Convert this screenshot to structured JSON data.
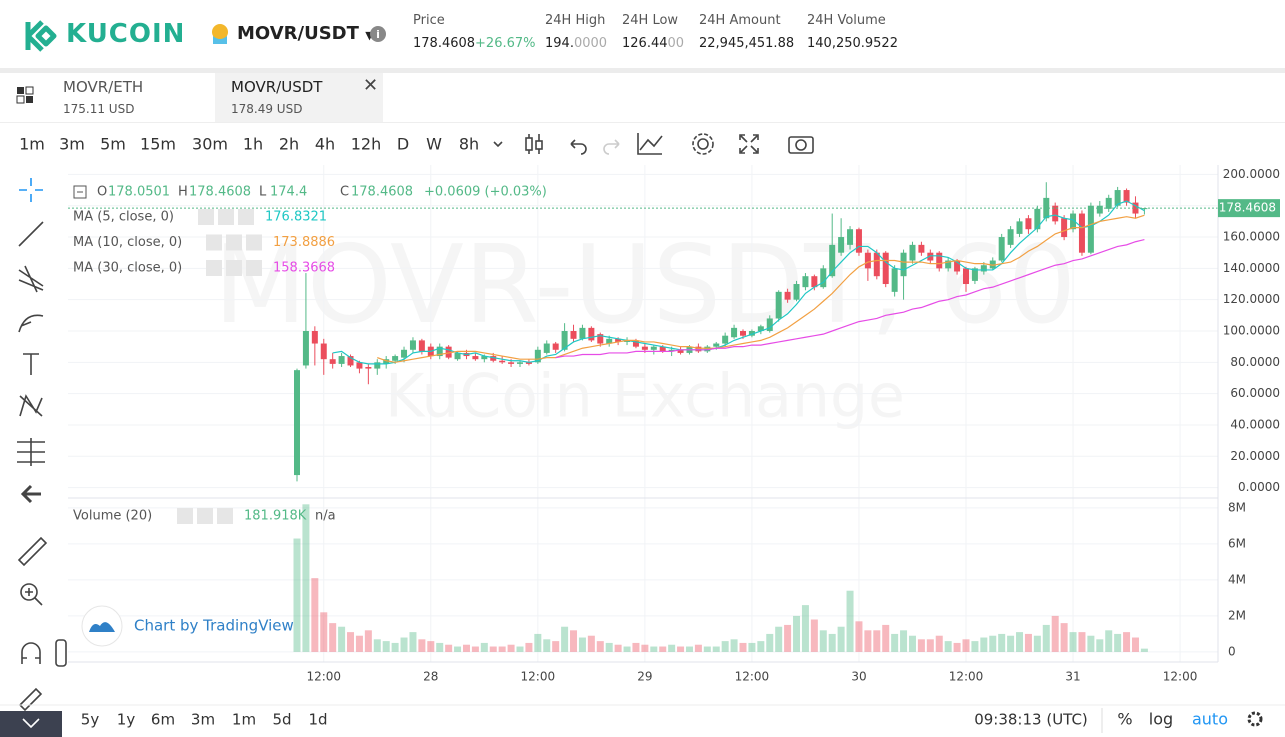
{
  "header": {
    "brand": "KUCOIN",
    "pair": "MOVR/USDT",
    "stats": [
      {
        "label": "Price",
        "value_parts": [
          "178.4608"
        ],
        "change": "+26.67%"
      },
      {
        "label": "24H High",
        "value_parts": [
          "194.",
          "0000"
        ]
      },
      {
        "label": "24H Low",
        "value_parts": [
          "126.44",
          "00"
        ]
      },
      {
        "label": "24H Amount",
        "value_parts": [
          "22,945,451.88"
        ]
      },
      {
        "label": "24H Volume",
        "value_parts": [
          "140,250.9522"
        ]
      }
    ]
  },
  "tabs": [
    {
      "pair": "MOVR/ETH",
      "price": "175.11 USD"
    },
    {
      "pair": "MOVR/USDT",
      "price": "178.49 USD"
    }
  ],
  "active_tab": 1,
  "intervals": [
    "1m",
    "3m",
    "5m",
    "15m",
    "30m",
    "1h",
    "2h",
    "4h",
    "12h",
    "D",
    "W",
    "8h"
  ],
  "active_interval": 5,
  "ranges": [
    "5y",
    "1y",
    "6m",
    "3m",
    "1m",
    "5d",
    "1d"
  ],
  "footer": {
    "time": "09:38:13 (UTC)",
    "options": [
      "%",
      "log",
      "auto"
    ],
    "active_option": 2
  },
  "branding": "Chart by TradingView",
  "chart_data": {
    "type": "candlestick",
    "watermark": "MOVR-USDT, 60",
    "watermark_sub": "KuCoin Exchange",
    "up_color": "#53b987",
    "down_color": "#eb4d5c",
    "grid": true,
    "last_price_line": true,
    "categories": [
      null,
      null,
      null,
      "12:00",
      null,
      null,
      null,
      null,
      null,
      null,
      null,
      null,
      null,
      null,
      null,
      "28",
      null,
      null,
      null,
      null,
      null,
      null,
      null,
      null,
      null,
      null,
      null,
      "12:00",
      null,
      null,
      null,
      null,
      null,
      null,
      null,
      null,
      null,
      null,
      null,
      "29",
      null,
      null,
      null,
      null,
      null,
      null,
      null,
      null,
      null,
      null,
      null,
      "12:00",
      null,
      null,
      null,
      null,
      null,
      null,
      null,
      null,
      null,
      null,
      null,
      "30",
      null,
      null,
      null,
      null,
      null,
      null,
      null,
      null,
      null,
      null,
      null,
      "12:00",
      null,
      null,
      null,
      null,
      null,
      null,
      null,
      null,
      null,
      null,
      null,
      "31",
      null,
      null,
      null,
      null,
      null,
      null,
      null,
      null,
      null,
      null,
      null,
      "12:00"
    ],
    "open": [
      8,
      78,
      100,
      92,
      82,
      79,
      84,
      80,
      77,
      76,
      79,
      81,
      83,
      88,
      94,
      90,
      84,
      90,
      82,
      86,
      84,
      82,
      84,
      81,
      80,
      79,
      80,
      80,
      86,
      92,
      88,
      100,
      95,
      102,
      98,
      92,
      95,
      93,
      94,
      90,
      88,
      90,
      87,
      88,
      86,
      90,
      87,
      90,
      92,
      96,
      100,
      97,
      100,
      100,
      108,
      125,
      120,
      128,
      135,
      128,
      135,
      150,
      155,
      165,
      150,
      150,
      150,
      125,
      135,
      145,
      155,
      150,
      150,
      140,
      145,
      140,
      132,
      138,
      140,
      145,
      155,
      162,
      172,
      165,
      172,
      180,
      172,
      165,
      175,
      150,
      175,
      178,
      180,
      190,
      182,
      178.0501,
      null,
      null,
      null,
      null
    ],
    "high": [
      76,
      137,
      103,
      95,
      86,
      86,
      85,
      81,
      79,
      82,
      84,
      85,
      90,
      96,
      95,
      92,
      92,
      91,
      87,
      88,
      86,
      85,
      86,
      84,
      82,
      81,
      82,
      90,
      94,
      93,
      105,
      104,
      104,
      103,
      99,
      97,
      96,
      96,
      95,
      92,
      91,
      91,
      90,
      90,
      91,
      92,
      91,
      93,
      99,
      104,
      101,
      101,
      104,
      110,
      126,
      127,
      132,
      137,
      136,
      142,
      175,
      172,
      167,
      166,
      152,
      152,
      151,
      142,
      152,
      157,
      157,
      152,
      151,
      147,
      146,
      141,
      141,
      144,
      147,
      162,
      167,
      172,
      174,
      180,
      195,
      182,
      174,
      177,
      177,
      182,
      183,
      187,
      192,
      191,
      186,
      178.4608,
      null,
      null,
      null,
      null
    ],
    "low": [
      4,
      76,
      78,
      72,
      76,
      77,
      77,
      73,
      66,
      72,
      76,
      79,
      80,
      86,
      85,
      82,
      82,
      82,
      81,
      82,
      81,
      80,
      80,
      79,
      77,
      77,
      78,
      79,
      85,
      86,
      87,
      93,
      94,
      93,
      90,
      90,
      91,
      91,
      89,
      86,
      85,
      86,
      84,
      85,
      85,
      86,
      86,
      88,
      90,
      95,
      95,
      96,
      98,
      99,
      106,
      118,
      119,
      126,
      126,
      127,
      134,
      148,
      152,
      148,
      132,
      133,
      128,
      122,
      120,
      143,
      148,
      143,
      138,
      138,
      136,
      125,
      130,
      136,
      139,
      144,
      153,
      160,
      162,
      163,
      170,
      168,
      158,
      163,
      148,
      149,
      173,
      176,
      179,
      180,
      172,
      174.4,
      null,
      null,
      null,
      null
    ],
    "close": [
      75,
      100,
      92,
      82,
      79,
      84,
      78,
      76,
      76,
      80,
      82,
      84,
      88,
      94,
      87,
      84,
      90,
      83,
      86,
      84,
      82,
      84,
      81,
      80,
      79,
      80,
      79,
      88,
      92,
      88,
      100,
      95,
      102,
      94,
      92,
      95,
      93,
      94,
      90,
      88,
      90,
      87,
      88,
      86,
      90,
      87,
      90,
      92,
      97,
      102,
      97,
      100,
      103,
      108,
      125,
      120,
      130,
      135,
      128,
      140,
      155,
      160,
      165,
      150,
      140,
      135,
      130,
      140,
      150,
      155,
      150,
      145,
      140,
      145,
      138,
      130,
      140,
      142,
      145,
      160,
      165,
      170,
      165,
      178,
      185,
      170,
      160,
      175,
      150,
      180,
      180,
      185,
      190,
      182,
      175,
      178.4608,
      null,
      null,
      null,
      null
    ],
    "change": "+0.0609 (+0.03%)",
    "ohlc_labels": [
      "O",
      "H",
      "L",
      "C"
    ],
    "series": [
      {
        "name": "MA (5, close, 0)",
        "color": "#1fc7c4",
        "values": [
          null,
          null,
          null,
          null,
          86,
          87,
          83,
          80,
          79,
          79,
          79,
          80,
          82,
          86,
          87,
          87,
          89,
          88,
          86,
          85,
          86,
          84,
          83,
          82,
          81,
          81,
          80,
          81,
          84,
          85,
          89,
          93,
          95,
          96,
          97,
          96,
          95,
          94,
          93,
          92,
          91,
          90,
          89,
          88,
          88,
          88,
          88,
          89,
          91,
          94,
          96,
          98,
          100,
          102,
          107,
          111,
          117,
          124,
          128,
          131,
          138,
          144,
          150,
          154,
          154,
          150,
          144,
          140,
          139,
          142,
          145,
          148,
          148,
          147,
          144,
          140,
          139,
          139,
          139,
          143,
          150,
          156,
          161,
          166,
          173,
          174,
          172,
          171,
          166,
          167,
          170,
          174,
          181,
          183,
          180,
          176.8321,
          null,
          null,
          null,
          null
        ]
      },
      {
        "name": "MA (10, close, 0)",
        "color": "#f2a043",
        "values": [
          null,
          null,
          null,
          null,
          null,
          null,
          null,
          null,
          null,
          83,
          81,
          80,
          81,
          82,
          83,
          84,
          85,
          86,
          87,
          87,
          87,
          86,
          85,
          84,
          83,
          82,
          82,
          82,
          83,
          83,
          85,
          87,
          89,
          90,
          91,
          92,
          93,
          94,
          94,
          93,
          93,
          92,
          91,
          90,
          90,
          89,
          89,
          89,
          90,
          91,
          92,
          93,
          94,
          96,
          99,
          102,
          106,
          110,
          114,
          119,
          124,
          130,
          136,
          141,
          144,
          145,
          145,
          145,
          144,
          144,
          144,
          143,
          143,
          144,
          145,
          144,
          143,
          143,
          142,
          143,
          144,
          147,
          151,
          154,
          158,
          162,
          164,
          166,
          166,
          168,
          170,
          171,
          172,
          173,
          172,
          173.8886,
          null,
          null,
          null,
          null
        ]
      },
      {
        "name": "MA (30, close, 0)",
        "color": "#e64ce6",
        "values": [
          null,
          null,
          null,
          null,
          null,
          null,
          null,
          null,
          null,
          null,
          null,
          null,
          null,
          null,
          null,
          null,
          null,
          null,
          null,
          null,
          null,
          null,
          null,
          null,
          null,
          null,
          null,
          null,
          null,
          83,
          84,
          84,
          85,
          85,
          85,
          86,
          86,
          86,
          87,
          87,
          87,
          87,
          87,
          88,
          88,
          88,
          88,
          89,
          89,
          90,
          90,
          91,
          91,
          92,
          93,
          94,
          95,
          96,
          97,
          98,
          100,
          102,
          104,
          106,
          107,
          108,
          110,
          111,
          112,
          114,
          115,
          117,
          119,
          120,
          122,
          123,
          125,
          127,
          128,
          130,
          132,
          134,
          136,
          138,
          140,
          142,
          143,
          145,
          146,
          148,
          150,
          152,
          154,
          155,
          157,
          158.3668,
          null,
          null,
          null,
          null
        ]
      }
    ],
    "ylim": [
      -6,
      206
    ],
    "yticks": [
      {
        "value": 0,
        "label": "0.0000"
      },
      {
        "value": 20,
        "label": "20.0000"
      },
      {
        "value": 40,
        "label": "40.0000"
      },
      {
        "value": 60,
        "label": "60.0000"
      },
      {
        "value": 80,
        "label": "80.0000"
      },
      {
        "value": 100,
        "label": "100.0000"
      },
      {
        "value": 120,
        "label": "120.0000"
      },
      {
        "value": 140,
        "label": "140.0000"
      },
      {
        "value": 160,
        "label": "160.0000"
      },
      {
        "value": 180,
        "label": "180.0000"
      },
      {
        "value": 200,
        "label": "200.0000"
      }
    ],
    "volume": {
      "name": "Volume (20)",
      "extra": "n/a",
      "values": [
        6300000,
        8200000,
        4100000,
        2200000,
        1600000,
        1400000,
        1100000,
        900000,
        1200000,
        700000,
        600000,
        500000,
        800000,
        1100000,
        700000,
        600000,
        500000,
        400000,
        300000,
        400000,
        300000,
        500000,
        300000,
        300000,
        400000,
        300000,
        500000,
        1000000,
        700000,
        600000,
        1400000,
        1200000,
        800000,
        900000,
        600000,
        500000,
        400000,
        300000,
        500000,
        400000,
        300000,
        300000,
        400000,
        300000,
        300000,
        400000,
        300000,
        300000,
        600000,
        700000,
        500000,
        500000,
        600000,
        1000000,
        1400000,
        1500000,
        2000000,
        2600000,
        1800000,
        1200000,
        1000000,
        1400000,
        3400000,
        1700000,
        1200000,
        1200000,
        1500000,
        1000000,
        1200000,
        900000,
        700000,
        700000,
        900000,
        600000,
        500000,
        700000,
        600000,
        800000,
        900000,
        1000000,
        900000,
        1100000,
        1000000,
        900000,
        1500000,
        2000000,
        1600000,
        1100000,
        1100000,
        900000,
        700000,
        1200000,
        1000000,
        1100000,
        800000,
        181918,
        null,
        null,
        null,
        null
      ],
      "value_labels": [
        null,
        null,
        null,
        null,
        null,
        null,
        null,
        null,
        null,
        null,
        null,
        null,
        null,
        null,
        null,
        null,
        null,
        null,
        null,
        null,
        null,
        null,
        null,
        null,
        null,
        null,
        null,
        null,
        null,
        null,
        null,
        null,
        null,
        null,
        null,
        null,
        null,
        null,
        null,
        null,
        null,
        null,
        null,
        null,
        null,
        null,
        null,
        null,
        null,
        null,
        null,
        null,
        null,
        null,
        null,
        null,
        null,
        null,
        null,
        null,
        null,
        null,
        null,
        null,
        null,
        null,
        null,
        null,
        null,
        null,
        null,
        null,
        null,
        null,
        null,
        null,
        null,
        null,
        null,
        null,
        null,
        null,
        null,
        null,
        null,
        null,
        null,
        null,
        null,
        null,
        null,
        null,
        null,
        null,
        null,
        "181.918K",
        null,
        null,
        null,
        null
      ],
      "ylim": [
        -560000,
        8440000
      ],
      "yticks": [
        0,
        {
          "value": 2000000,
          "label": "2M"
        },
        {
          "value": 4000000,
          "label": "4M"
        },
        {
          "value": 6000000,
          "label": "6M"
        },
        {
          "value": 8000000,
          "label": "8M"
        }
      ]
    }
  }
}
